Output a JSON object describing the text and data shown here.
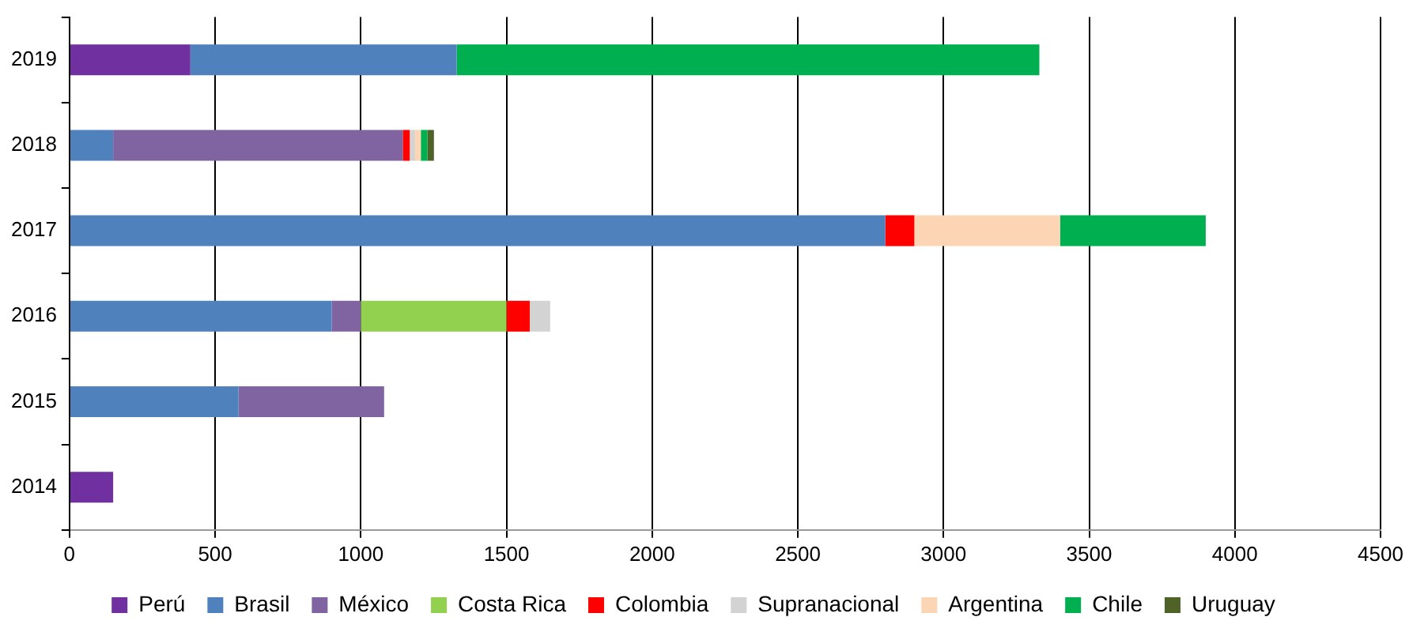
{
  "chart_data": {
    "type": "bar",
    "orientation": "horizontal",
    "stacked": true,
    "categories": [
      "2019",
      "2018",
      "2017",
      "2016",
      "2015",
      "2014"
    ],
    "series": [
      {
        "name": "Perú",
        "color": "#7030a0",
        "values": [
          415,
          null,
          null,
          null,
          null,
          150
        ]
      },
      {
        "name": "Brasil",
        "color": "#4f81bd",
        "values": [
          914,
          150,
          2800,
          900,
          580,
          null
        ]
      },
      {
        "name": "México",
        "color": "#8064a2",
        "values": [
          null,
          994,
          null,
          100,
          500,
          null
        ]
      },
      {
        "name": "Costa Rica",
        "color": "#92d050",
        "values": [
          null,
          null,
          null,
          500,
          null,
          null
        ]
      },
      {
        "name": "Colombia",
        "color": "#ff0000",
        "values": [
          null,
          24,
          100,
          80,
          null,
          null
        ]
      },
      {
        "name": "Supranacional",
        "color": "#d3d3d3",
        "values": [
          null,
          18,
          null,
          70,
          null,
          null
        ]
      },
      {
        "name": "Argentina",
        "color": "#fcd5b5",
        "values": [
          null,
          20,
          500,
          null,
          null,
          null
        ]
      },
      {
        "name": "Chile",
        "color": "#00b050",
        "values": [
          2000,
          23,
          500,
          null,
          null,
          null
        ]
      },
      {
        "name": "Uruguay",
        "color": "#4f6228",
        "values": [
          null,
          22,
          null,
          null,
          null,
          null
        ]
      }
    ],
    "xlim": [
      0,
      4500
    ],
    "xticks": [
      0,
      500,
      1000,
      1500,
      2000,
      2500,
      3000,
      3500,
      4000,
      4500
    ],
    "grid": "x",
    "legend": "bottom"
  }
}
